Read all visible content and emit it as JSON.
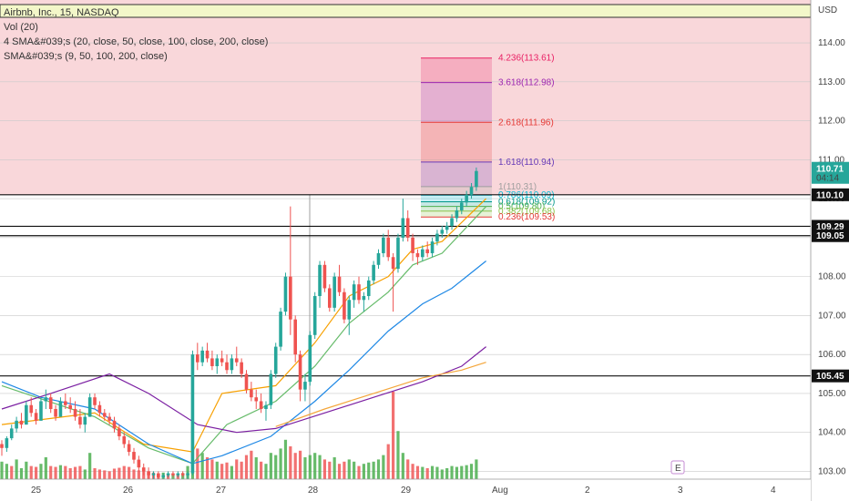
{
  "header": {
    "symbol_line": "Airbnb, Inc., 15, NASDAQ",
    "indicators": [
      "Vol (20)",
      "4 SMA&#039;s (20, close, 50, close, 100, close, 200, close)",
      "SMA&#039;s (9, 50, 100, 200, close)"
    ],
    "currency": "USD",
    "earnings_marker": "E"
  },
  "colors": {
    "up": "#26a69a",
    "down": "#ef5350",
    "vol_up": "#4caf50",
    "vol_down": "#f05858",
    "zone_fill": "#f6c1c6",
    "ma_orange": "#f7a000",
    "ma_green": "#66bb6a",
    "ma_blue": "#1e88e5",
    "ma_purple": "#7b1fa2",
    "ma_red": "#e65100"
  },
  "chart_data": {
    "type": "candlestick",
    "x_axis_labels": [
      "25",
      "26",
      "27",
      "28",
      "29",
      "Aug",
      "2",
      "3",
      "4"
    ],
    "y_axis_labels": [
      "114.00",
      "113.00",
      "112.00",
      "111.00",
      "110.00",
      "109.00",
      "108.00",
      "107.00",
      "106.00",
      "105.00",
      "104.00",
      "103.00"
    ],
    "ylim": [
      102.8,
      115.1
    ],
    "last_price": "110.71",
    "countdown": "04:14",
    "horizontal_levels": [
      {
        "value": 110.1,
        "label": "110.10"
      },
      {
        "value": 109.29,
        "label": "109.29"
      },
      {
        "value": 109.05,
        "label": "109.05"
      },
      {
        "value": 105.45,
        "label": "105.45"
      }
    ],
    "zones": [
      {
        "from": 110.1,
        "to": 115.1
      }
    ],
    "fibonacci": [
      {
        "level": "4.236",
        "price": "113.61",
        "color": "#e91e63"
      },
      {
        "level": "3.618",
        "price": "112.98",
        "color": "#9c27b0"
      },
      {
        "level": "2.618",
        "price": "111.96",
        "color": "#e53935"
      },
      {
        "level": "1.618",
        "price": "110.94",
        "color": "#673ab7"
      },
      {
        "level": "1",
        "price": "110.31",
        "color": "#9e9e9e"
      },
      {
        "level": "0.786",
        "price": "110.09",
        "color": "#00bcd4"
      },
      {
        "level": "0.618",
        "price": "109.92",
        "color": "#009688"
      },
      {
        "level": "0.5",
        "price": "109.80",
        "color": "#4caf50"
      },
      {
        "level": "0.382",
        "price": "109.68",
        "color": "#8bc34a"
      },
      {
        "level": "0.236",
        "price": "109.53",
        "color": "#e53935"
      }
    ],
    "candles": [
      [
        103.7,
        103.8,
        103.4,
        103.6
      ],
      [
        103.6,
        103.9,
        103.5,
        103.85
      ],
      [
        103.85,
        104.2,
        103.8,
        104.1
      ],
      [
        104.1,
        104.4,
        104.0,
        104.3
      ],
      [
        104.3,
        104.5,
        104.1,
        104.2
      ],
      [
        104.2,
        104.8,
        104.2,
        104.7
      ],
      [
        104.7,
        104.9,
        104.4,
        104.5
      ],
      [
        104.5,
        104.6,
        104.2,
        104.3
      ],
      [
        104.3,
        104.9,
        104.3,
        104.8
      ],
      [
        104.8,
        105.1,
        104.6,
        104.9
      ],
      [
        104.9,
        105.0,
        104.5,
        104.6
      ],
      [
        104.6,
        104.7,
        104.3,
        104.4
      ],
      [
        104.4,
        104.9,
        104.4,
        104.8
      ],
      [
        104.8,
        105.0,
        104.6,
        104.7
      ],
      [
        104.7,
        104.9,
        104.5,
        104.6
      ],
      [
        104.6,
        104.8,
        104.3,
        104.4
      ],
      [
        104.4,
        104.6,
        104.1,
        104.2
      ],
      [
        104.2,
        104.5,
        104.0,
        104.4
      ],
      [
        104.4,
        105.0,
        104.4,
        104.9
      ],
      [
        104.9,
        105.0,
        104.6,
        104.7
      ],
      [
        104.7,
        104.8,
        104.4,
        104.5
      ],
      [
        104.5,
        104.6,
        104.3,
        104.4
      ],
      [
        104.4,
        104.5,
        104.2,
        104.3
      ],
      [
        104.3,
        104.4,
        104.0,
        104.1
      ],
      [
        104.1,
        104.2,
        103.8,
        103.9
      ],
      [
        103.9,
        104.0,
        103.6,
        103.7
      ],
      [
        103.7,
        103.8,
        103.4,
        103.5
      ],
      [
        103.5,
        103.6,
        103.2,
        103.3
      ],
      [
        103.3,
        103.4,
        103.0,
        103.1
      ],
      [
        103.1,
        103.2,
        102.9,
        103.0
      ],
      [
        103.0,
        103.1,
        102.8,
        102.9
      ],
      [
        102.9,
        103.0,
        102.8,
        102.95
      ],
      [
        102.95,
        103.0,
        102.8,
        102.85
      ],
      [
        102.85,
        102.95,
        102.8,
        102.9
      ],
      [
        102.9,
        103.0,
        102.85,
        102.95
      ],
      [
        102.95,
        103.0,
        102.85,
        102.9
      ],
      [
        102.9,
        103.0,
        102.85,
        102.95
      ],
      [
        102.95,
        103.0,
        102.85,
        102.9
      ],
      [
        102.9,
        103.0,
        102.8,
        102.95
      ],
      [
        102.95,
        106.1,
        102.9,
        106.0
      ],
      [
        106.0,
        106.3,
        105.6,
        105.8
      ],
      [
        105.8,
        106.2,
        105.7,
        106.1
      ],
      [
        106.1,
        106.3,
        105.8,
        105.9
      ],
      [
        105.9,
        106.1,
        105.6,
        105.7
      ],
      [
        105.7,
        106.0,
        105.5,
        105.9
      ],
      [
        105.9,
        106.1,
        105.7,
        105.8
      ],
      [
        105.8,
        106.0,
        105.5,
        105.6
      ],
      [
        105.6,
        106.0,
        105.5,
        105.9
      ],
      [
        105.9,
        106.2,
        105.7,
        105.8
      ],
      [
        105.8,
        105.9,
        105.4,
        105.5
      ],
      [
        105.5,
        105.6,
        105.0,
        105.1
      ],
      [
        105.1,
        105.3,
        104.8,
        104.9
      ],
      [
        104.9,
        105.1,
        104.6,
        104.8
      ],
      [
        104.8,
        105.0,
        104.5,
        104.6
      ],
      [
        104.6,
        104.8,
        104.3,
        104.7
      ],
      [
        104.7,
        105.6,
        104.6,
        105.5
      ],
      [
        105.5,
        106.3,
        105.4,
        106.2
      ],
      [
        106.2,
        107.2,
        106.1,
        107.1
      ],
      [
        107.1,
        108.1,
        107.0,
        108.0
      ],
      [
        108.0,
        109.8,
        106.5,
        106.9
      ],
      [
        106.9,
        107.0,
        105.8,
        106.0
      ],
      [
        106.0,
        106.1,
        104.8,
        105.1
      ],
      [
        105.1,
        105.5,
        104.8,
        105.3
      ],
      [
        105.3,
        106.6,
        105.2,
        106.5
      ],
      [
        106.5,
        107.6,
        106.4,
        107.5
      ],
      [
        107.5,
        108.4,
        107.2,
        108.3
      ],
      [
        108.3,
        108.4,
        107.6,
        107.7
      ],
      [
        107.7,
        107.8,
        107.1,
        107.2
      ],
      [
        107.2,
        108.1,
        107.1,
        108.0
      ],
      [
        108.0,
        108.3,
        107.5,
        107.6
      ],
      [
        107.6,
        107.7,
        106.8,
        106.9
      ],
      [
        106.9,
        107.5,
        106.5,
        107.4
      ],
      [
        107.4,
        107.9,
        107.2,
        107.8
      ],
      [
        107.8,
        108.0,
        107.3,
        107.4
      ],
      [
        107.4,
        107.6,
        107.1,
        107.5
      ],
      [
        107.5,
        108.0,
        107.4,
        107.9
      ],
      [
        107.9,
        108.4,
        107.8,
        108.3
      ],
      [
        108.3,
        108.7,
        108.2,
        108.6
      ],
      [
        108.6,
        109.1,
        108.5,
        109.0
      ],
      [
        109.0,
        109.2,
        108.4,
        108.5
      ],
      [
        108.5,
        108.6,
        107.1,
        108.2
      ],
      [
        108.2,
        109.1,
        108.1,
        109.0
      ],
      [
        109.0,
        110.0,
        108.9,
        109.5
      ],
      [
        109.5,
        109.7,
        108.9,
        109.0
      ],
      [
        109.0,
        109.1,
        108.4,
        108.6
      ],
      [
        108.6,
        108.7,
        108.3,
        108.5
      ],
      [
        108.5,
        108.8,
        108.4,
        108.7
      ],
      [
        108.7,
        108.9,
        108.5,
        108.6
      ],
      [
        108.6,
        109.0,
        108.5,
        108.9
      ],
      [
        108.9,
        109.2,
        108.8,
        109.1
      ],
      [
        109.1,
        109.3,
        109.0,
        109.2
      ],
      [
        109.2,
        109.4,
        109.1,
        109.3
      ],
      [
        109.3,
        109.6,
        109.2,
        109.5
      ],
      [
        109.5,
        109.8,
        109.4,
        109.7
      ],
      [
        109.7,
        110.0,
        109.6,
        109.9
      ],
      [
        109.9,
        110.2,
        109.8,
        110.1
      ],
      [
        110.1,
        110.4,
        110.0,
        110.3
      ],
      [
        110.3,
        110.8,
        110.2,
        110.71
      ]
    ],
    "volume": [
      [
        40,
        1
      ],
      [
        35,
        1
      ],
      [
        30,
        0
      ],
      [
        45,
        1
      ],
      [
        25,
        1
      ],
      [
        40,
        1
      ],
      [
        30,
        0
      ],
      [
        28,
        0
      ],
      [
        35,
        1
      ],
      [
        50,
        1
      ],
      [
        30,
        0
      ],
      [
        28,
        0
      ],
      [
        32,
        1
      ],
      [
        30,
        0
      ],
      [
        25,
        0
      ],
      [
        28,
        0
      ],
      [
        30,
        0
      ],
      [
        22,
        1
      ],
      [
        60,
        1
      ],
      [
        25,
        0
      ],
      [
        22,
        0
      ],
      [
        20,
        0
      ],
      [
        18,
        0
      ],
      [
        24,
        0
      ],
      [
        26,
        0
      ],
      [
        30,
        0
      ],
      [
        28,
        0
      ],
      [
        22,
        0
      ],
      [
        20,
        0
      ],
      [
        25,
        0
      ],
      [
        18,
        0
      ],
      [
        15,
        0
      ],
      [
        12,
        0
      ],
      [
        15,
        1
      ],
      [
        12,
        0
      ],
      [
        10,
        1
      ],
      [
        12,
        0
      ],
      [
        14,
        1
      ],
      [
        30,
        1
      ],
      [
        120,
        1
      ],
      [
        70,
        0
      ],
      [
        60,
        1
      ],
      [
        50,
        0
      ],
      [
        45,
        0
      ],
      [
        40,
        1
      ],
      [
        35,
        0
      ],
      [
        38,
        0
      ],
      [
        30,
        1
      ],
      [
        45,
        0
      ],
      [
        40,
        0
      ],
      [
        55,
        0
      ],
      [
        65,
        0
      ],
      [
        50,
        1
      ],
      [
        40,
        0
      ],
      [
        35,
        1
      ],
      [
        60,
        1
      ],
      [
        55,
        1
      ],
      [
        70,
        1
      ],
      [
        90,
        1
      ],
      [
        75,
        0
      ],
      [
        60,
        0
      ],
      [
        65,
        0
      ],
      [
        50,
        1
      ],
      [
        55,
        1
      ],
      [
        60,
        1
      ],
      [
        55,
        1
      ],
      [
        45,
        0
      ],
      [
        40,
        0
      ],
      [
        50,
        1
      ],
      [
        35,
        0
      ],
      [
        40,
        0
      ],
      [
        45,
        1
      ],
      [
        40,
        1
      ],
      [
        30,
        0
      ],
      [
        35,
        1
      ],
      [
        38,
        1
      ],
      [
        40,
        1
      ],
      [
        45,
        1
      ],
      [
        55,
        1
      ],
      [
        80,
        0
      ],
      [
        200,
        0
      ],
      [
        110,
        1
      ],
      [
        60,
        1
      ],
      [
        45,
        0
      ],
      [
        35,
        0
      ],
      [
        30,
        0
      ],
      [
        28,
        1
      ],
      [
        25,
        0
      ],
      [
        30,
        1
      ],
      [
        28,
        1
      ],
      [
        22,
        1
      ],
      [
        25,
        1
      ],
      [
        30,
        1
      ],
      [
        28,
        1
      ],
      [
        30,
        1
      ],
      [
        32,
        1
      ],
      [
        35,
        1
      ],
      [
        45,
        1
      ]
    ],
    "moving_averages": [
      {
        "color": "#f7a000",
        "points": [
          [
            0,
            104.2
          ],
          [
            19,
            104.5
          ],
          [
            29,
            103.7
          ],
          [
            39,
            103.5
          ],
          [
            45,
            105.0
          ],
          [
            56,
            105.2
          ],
          [
            64,
            106.3
          ],
          [
            71,
            107.5
          ],
          [
            79,
            108.0
          ],
          [
            84,
            108.7
          ],
          [
            90,
            108.9
          ],
          [
            99,
            110.0
          ]
        ]
      },
      {
        "color": "#66bb6a",
        "points": [
          [
            0,
            105.2
          ],
          [
            19,
            104.4
          ],
          [
            30,
            103.6
          ],
          [
            39,
            103.2
          ],
          [
            46,
            104.2
          ],
          [
            56,
            104.8
          ],
          [
            64,
            105.7
          ],
          [
            71,
            106.8
          ],
          [
            79,
            107.6
          ],
          [
            84,
            108.3
          ],
          [
            90,
            108.6
          ],
          [
            99,
            109.8
          ]
        ]
      },
      {
        "color": "#1e88e5",
        "points": [
          [
            0,
            105.3
          ],
          [
            8,
            104.9
          ],
          [
            19,
            104.6
          ],
          [
            30,
            103.7
          ],
          [
            39,
            103.2
          ],
          [
            45,
            103.4
          ],
          [
            55,
            103.9
          ],
          [
            64,
            104.8
          ],
          [
            71,
            105.6
          ],
          [
            79,
            106.6
          ],
          [
            86,
            107.3
          ],
          [
            92,
            107.7
          ],
          [
            99,
            108.4
          ]
        ]
      },
      {
        "color": "#7b1fa2",
        "points": [
          [
            0,
            104.6
          ],
          [
            10,
            105.0
          ],
          [
            22,
            105.5
          ],
          [
            30,
            105.0
          ],
          [
            40,
            104.2
          ],
          [
            48,
            104.0
          ],
          [
            56,
            104.1
          ],
          [
            66,
            104.5
          ],
          [
            76,
            104.9
          ],
          [
            86,
            105.3
          ],
          [
            94,
            105.7
          ],
          [
            99,
            106.2
          ]
        ]
      },
      {
        "color": "#f4a63a",
        "points": [
          [
            56,
            104.15
          ],
          [
            66,
            104.6
          ],
          [
            76,
            105.0
          ],
          [
            86,
            105.4
          ],
          [
            94,
            105.6
          ],
          [
            99,
            105.8
          ]
        ]
      }
    ]
  }
}
